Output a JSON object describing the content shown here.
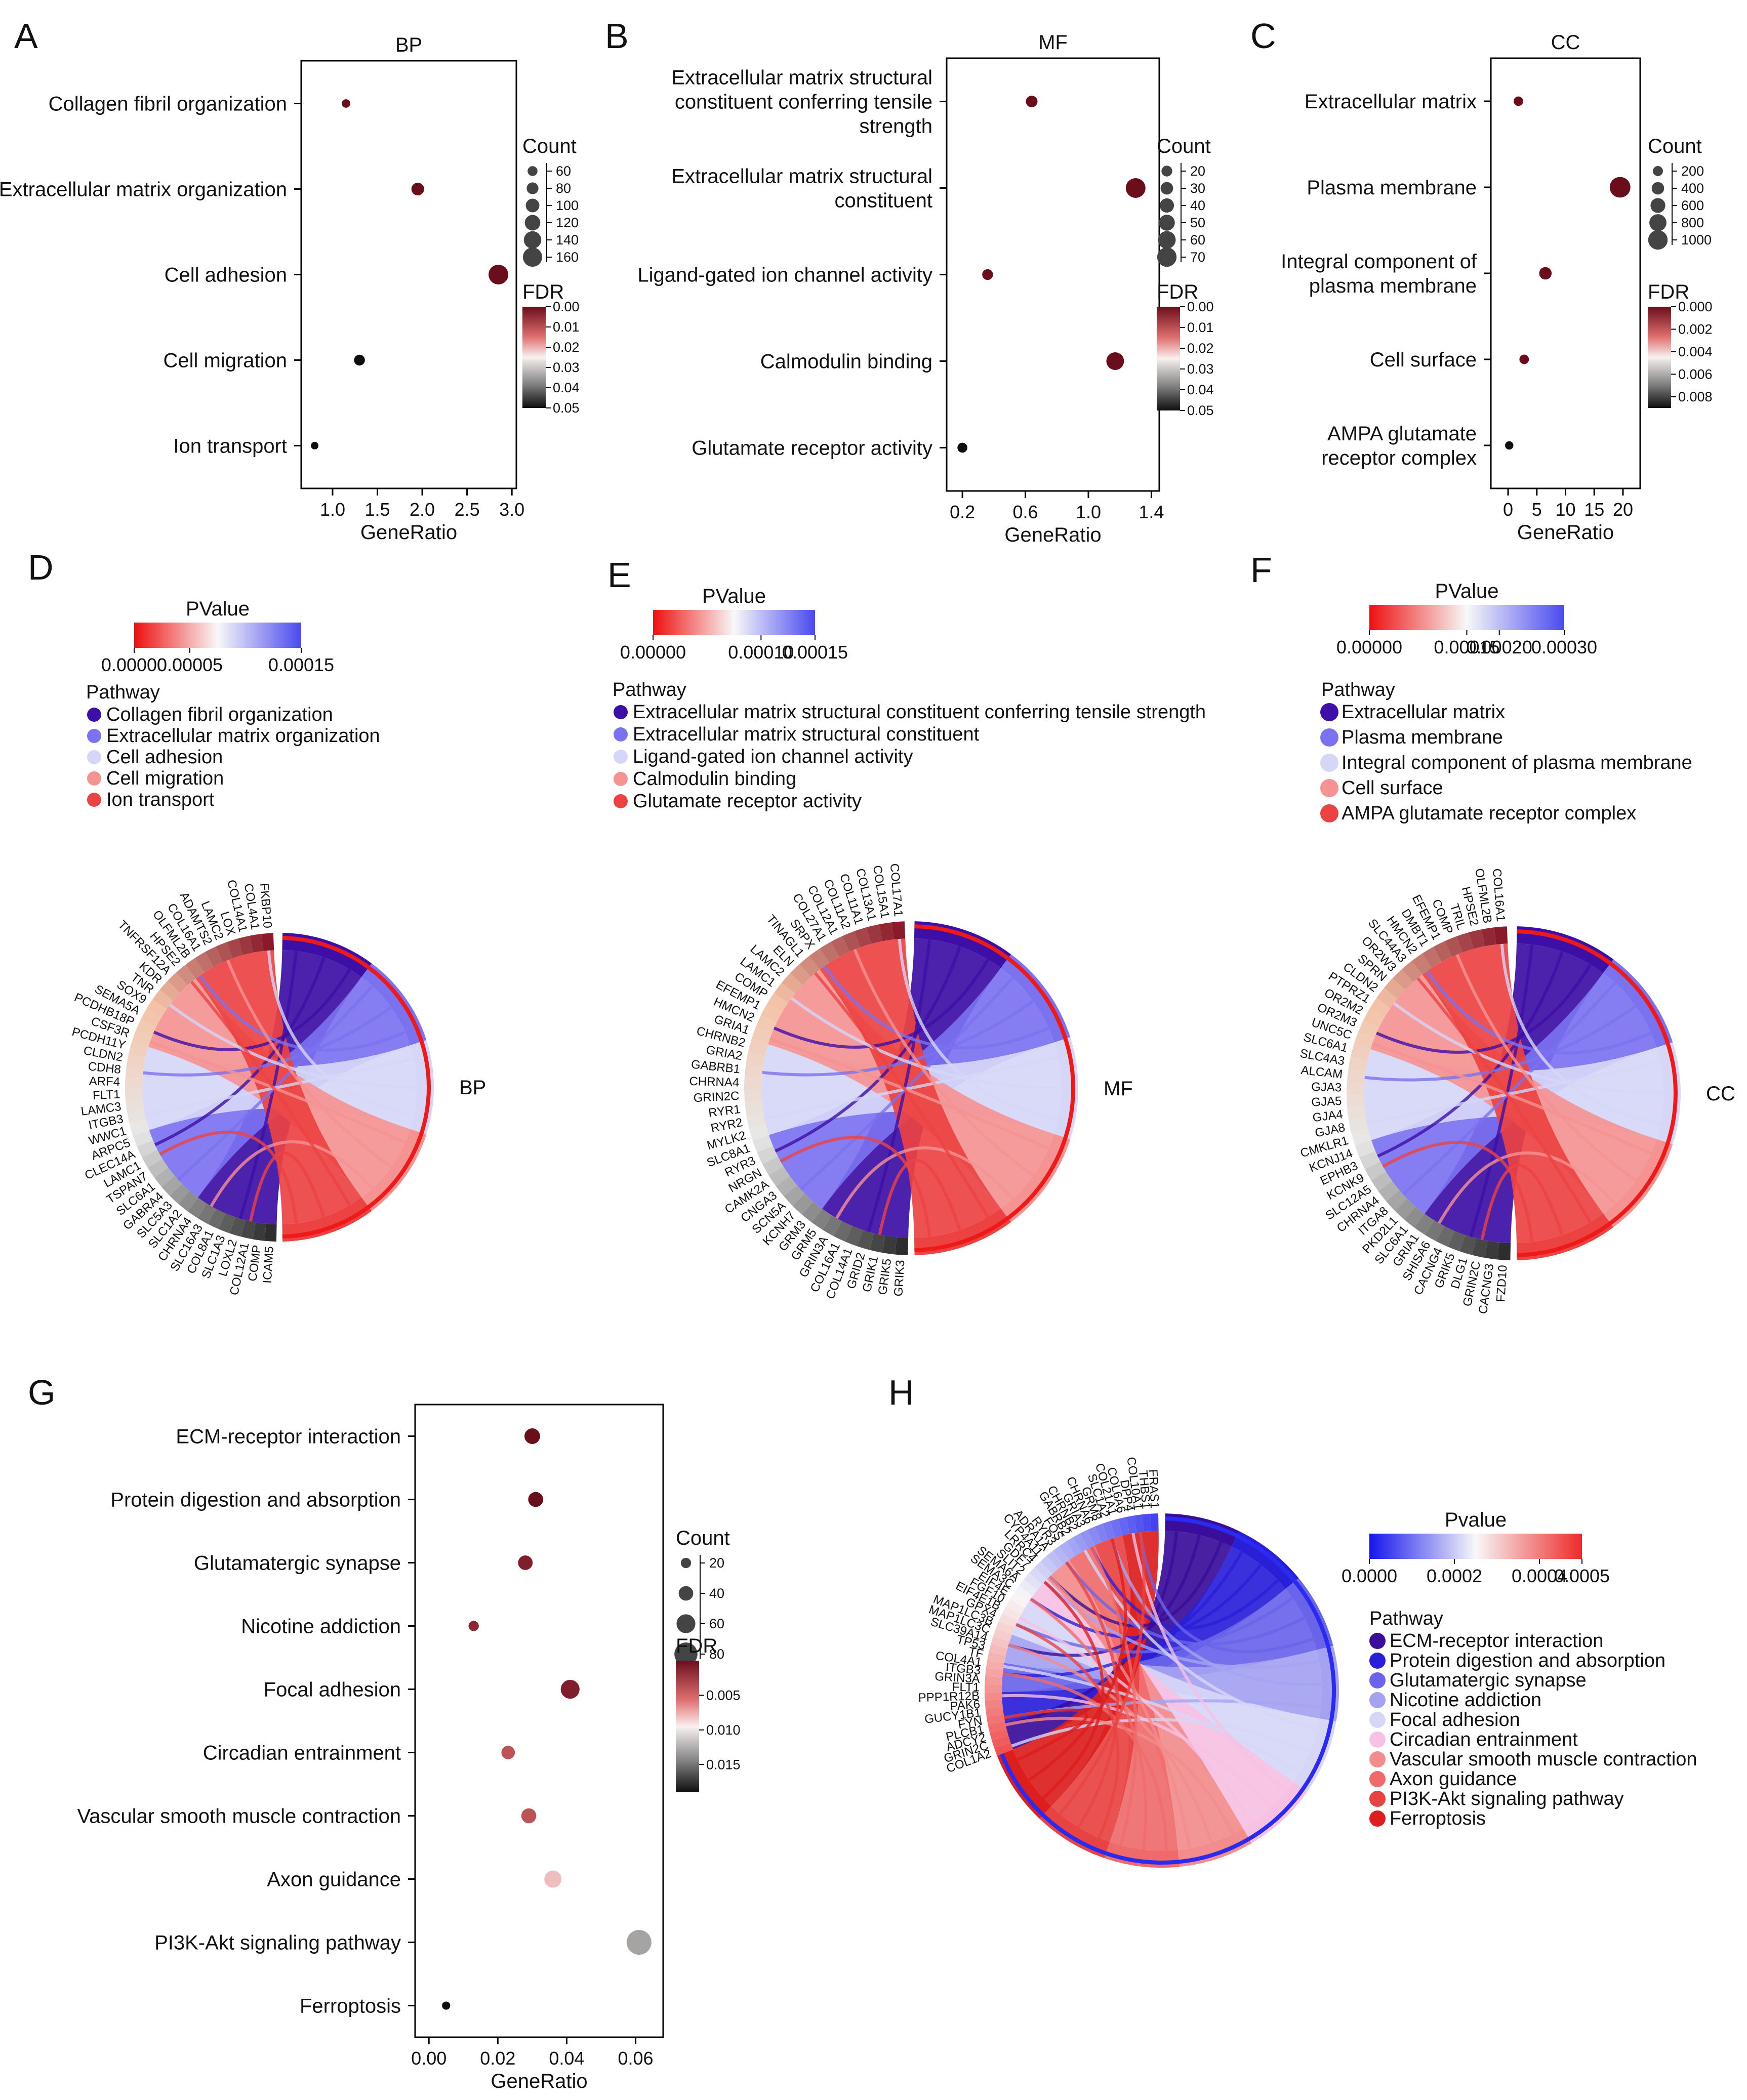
{
  "chart_data": [
    {
      "panel": "A",
      "type": "scatter",
      "title": "BP",
      "xlabel": "GeneRatio",
      "xticks": [
        "1.0",
        "1.5",
        "2.0",
        "2.5",
        "3.0"
      ],
      "xlim": [
        0.65,
        3.05
      ],
      "categories": [
        "Collagen fibril organization",
        "Extracellular matrix organization",
        "Cell adhesion",
        "Cell migration",
        "Ion transport"
      ],
      "points": [
        {
          "term": "Collagen fibril organization",
          "x": 1.15,
          "count": 45,
          "fdr": 0.0
        },
        {
          "term": "Extracellular matrix organization",
          "x": 1.95,
          "count": 90,
          "fdr": 0.0
        },
        {
          "term": "Cell adhesion",
          "x": 2.85,
          "count": 165,
          "fdr": 0.0
        },
        {
          "term": "Cell migration",
          "x": 1.3,
          "count": 70,
          "fdr": 0.05
        },
        {
          "term": "Ion transport",
          "x": 0.8,
          "count": 35,
          "fdr": 0.05
        }
      ],
      "size_legend": {
        "title": "Count",
        "values": [
          60,
          80,
          100,
          120,
          140,
          160
        ],
        "range": [
          30,
          170
        ]
      },
      "color_legend": {
        "title": "FDR",
        "ticks": [
          "0.00",
          "0.01",
          "0.02",
          "0.03",
          "0.04",
          "0.05"
        ],
        "max": 0.05
      }
    },
    {
      "panel": "B",
      "type": "scatter",
      "title": "MF",
      "xlabel": "GeneRatio",
      "xticks": [
        "0.2",
        "0.6",
        "1.0",
        "1.4"
      ],
      "xlim": [
        0.1,
        1.45
      ],
      "categories": [
        "Extracellular matrix structural constituent conferring tensile strength",
        "Extracellular matrix structural constituent",
        "Ligand-gated ion channel activity",
        "Calmodulin binding",
        "Glutamate receptor activity"
      ],
      "category_lines": [
        [
          "Extracellular matrix structural",
          "constituent conferring tensile",
          "strength"
        ],
        [
          "Extracellular matrix structural",
          "constituent"
        ],
        [
          "Ligand-gated ion channel activity"
        ],
        [
          "Calmodulin binding"
        ],
        [
          "Glutamate receptor activity"
        ]
      ],
      "points": [
        {
          "term": "ECM structural constituent conferring tensile strength",
          "x": 0.64,
          "count": 25,
          "fdr": 0.0
        },
        {
          "term": "ECM structural constituent",
          "x": 1.3,
          "count": 72,
          "fdr": 0.0
        },
        {
          "term": "Ligand-gated ion channel activity",
          "x": 0.36,
          "count": 20,
          "fdr": 0.0
        },
        {
          "term": "Calmodulin binding",
          "x": 1.17,
          "count": 60,
          "fdr": 0.0
        },
        {
          "term": "Glutamate receptor activity",
          "x": 0.2,
          "count": 15,
          "fdr": 0.05
        }
      ],
      "size_legend": {
        "title": "Count",
        "values": [
          20,
          30,
          40,
          50,
          60,
          70
        ],
        "range": [
          10,
          75
        ]
      },
      "color_legend": {
        "title": "FDR",
        "ticks": [
          "0.00",
          "0.01",
          "0.02",
          "0.03",
          "0.04",
          "0.05"
        ],
        "max": 0.05
      }
    },
    {
      "panel": "C",
      "type": "scatter",
      "title": "CC",
      "xlabel": "GeneRatio",
      "xticks": [
        "0",
        "5",
        "10",
        "15",
        "20"
      ],
      "xlim": [
        -3,
        23
      ],
      "categories": [
        "Extracellular matrix",
        "Plasma membrane",
        "Integral component of plasma membrane",
        "Cell surface",
        "AMPA glutamate receptor complex"
      ],
      "category_lines": [
        [
          "Extracellular matrix"
        ],
        [
          "Plasma membrane"
        ],
        [
          "Integral component of",
          "plasma membrane"
        ],
        [
          "Cell surface"
        ],
        [
          "AMPA glutamate",
          "receptor complex"
        ]
      ],
      "points": [
        {
          "term": "Extracellular matrix",
          "x": 1.8,
          "count": 150,
          "fdr": 0.0
        },
        {
          "term": "Plasma membrane",
          "x": 19.5,
          "count": 1100,
          "fdr": 0.0
        },
        {
          "term": "Integral component of plasma membrane",
          "x": 6.5,
          "count": 400,
          "fdr": 0.0
        },
        {
          "term": "Cell surface",
          "x": 2.8,
          "count": 150,
          "fdr": 0.0
        },
        {
          "term": "AMPA glutamate receptor complex",
          "x": 0.2,
          "count": 50,
          "fdr": 0.009
        }
      ],
      "size_legend": {
        "title": "Count",
        "values": [
          200,
          400,
          600,
          800,
          1000
        ],
        "range": [
          30,
          1150
        ]
      },
      "color_legend": {
        "title": "FDR",
        "ticks": [
          "0.000",
          "0.002",
          "0.004",
          "0.006",
          "0.008"
        ],
        "max": 0.009
      }
    },
    {
      "panel": "D",
      "type": "chord",
      "label": "BP",
      "scale": {
        "title": "PValue",
        "ticks": [
          "0.00000",
          "0.00005",
          "0.00015"
        ],
        "max": 0.00015
      },
      "pathways": [
        "Collagen fibril organization",
        "Extracellular matrix organization",
        "Cell adhesion",
        "Cell migration",
        "Ion transport"
      ],
      "genes": [
        "ICAM5",
        "COMP",
        "COL12A1",
        "LOXL2",
        "SLC1A3",
        "COL8A1",
        "SLC16A3",
        "CHRNA4",
        "SLC1A2",
        "SLC5A3",
        "GABRA4",
        "SLC6A1",
        "TSPAN7",
        "LAMC1",
        "CLEC14A",
        "ARPC5",
        "WWC1",
        "ITGB3",
        "LAMC3",
        "FLT1",
        "ARF4",
        "CDH8",
        "CLDN2",
        "PCDH11Y",
        "CSF3R",
        "PCDHB18P",
        "SEMA5A",
        "SOX9",
        "TNR",
        "KDR",
        "TNFRSF12A",
        "HPSE2",
        "OLFML2B",
        "COL16A1",
        "ADAMTS2",
        "LAMC2",
        "LOX",
        "COL14A1",
        "COL4A1",
        "FKBP10"
      ]
    },
    {
      "panel": "E",
      "type": "chord",
      "label": "MF",
      "scale": {
        "title": "PValue",
        "ticks": [
          "0.00000",
          "0.00010",
          "0.00015"
        ],
        "max": 0.00015
      },
      "pathways": [
        "Extracellular matrix structural constituent conferring tensile strength",
        "Extracellular matrix structural constituent",
        "Ligand-gated ion channel activity",
        "Calmodulin binding",
        "Glutamate receptor activity"
      ],
      "genes": [
        "GRIK3",
        "GRIK5",
        "GRIK1",
        "GRID2",
        "COL14A1",
        "COL16A1",
        "GRIN3A",
        "GRM5",
        "GRM3",
        "KCNH7",
        "SCN5A",
        "CNGA3",
        "CAMK2A",
        "NRGN",
        "RYR3",
        "SLC8A1",
        "MYLK2",
        "RYR2",
        "RYR1",
        "GRIN2C",
        "CHRNA4",
        "GABRB1",
        "GRIA2",
        "CHRNB2",
        "GRIA1",
        "HMCN2",
        "EFEMP1",
        "COMP",
        "LAMC1",
        "LAMC2",
        "ELN",
        "TINAGL1",
        "SRPX",
        "COL27A1",
        "COL12A1",
        "COL11A2",
        "COL11A1",
        "COL13A1",
        "COL15A1",
        "COL17A1"
      ]
    },
    {
      "panel": "F",
      "type": "chord",
      "label": "CC",
      "scale": {
        "title": "PValue",
        "ticks": [
          "0.00000",
          "0.00015",
          "0.00020",
          "0.00030"
        ],
        "max": 0.0003
      },
      "pathways": [
        "Extracellular matrix",
        "Plasma membrane",
        "Integral component of plasma membrane",
        "Cell surface",
        "AMPA glutamate receptor complex"
      ],
      "genes": [
        "FZD10",
        "CACNG3",
        "GRIN2C",
        "DLG1",
        "GRIK5",
        "CACNG4",
        "SHISA6",
        "GRIA1",
        "SLC6A1",
        "PKD2L1",
        "ITGA8",
        "CHRNA4",
        "SLC12A5",
        "KCNK9",
        "EPHB3",
        "KCNJ14",
        "CMKLR1",
        "GJA8",
        "GJA4",
        "GJA5",
        "GJA3",
        "ALCAM",
        "SLC4A3",
        "SLC6A1",
        "UNC5C",
        "OR2M3",
        "OR2M2",
        "PTPRZ1",
        "CLDN2",
        "SPRN",
        "OR2W3",
        "SLC44A3",
        "HMCN2",
        "DMBT1",
        "EFEMP1",
        "COMP",
        "TRIL",
        "HPSE2",
        "OLFML2B",
        "COL16A1"
      ]
    },
    {
      "panel": "G",
      "type": "scatter",
      "xlabel": "GeneRatio",
      "xticks": [
        "0.00",
        "0.02",
        "0.04",
        "0.06"
      ],
      "xlim": [
        -0.004,
        0.068
      ],
      "categories": [
        "ECM-receptor interaction",
        "Protein digestion and absorption",
        "Glutamatergic synapse",
        "Nicotine addiction",
        "Focal adhesion",
        "Circadian entrainment",
        "Vascular smooth muscle contraction",
        "Axon guidance",
        "PI3K-Akt signaling pathway",
        "Ferroptosis"
      ],
      "points": [
        {
          "term": "ECM-receptor interaction",
          "x": 0.03,
          "count": 45,
          "fdr": 0.0
        },
        {
          "term": "Protein digestion and absorption",
          "x": 0.031,
          "count": 42,
          "fdr": 0.0
        },
        {
          "term": "Glutamatergic synapse",
          "x": 0.028,
          "count": 40,
          "fdr": 0.001
        },
        {
          "term": "Nicotine addiction",
          "x": 0.013,
          "count": 20,
          "fdr": 0.0015
        },
        {
          "term": "Focal adhesion",
          "x": 0.041,
          "count": 60,
          "fdr": 0.001
        },
        {
          "term": "Circadian entrainment",
          "x": 0.023,
          "count": 35,
          "fdr": 0.004
        },
        {
          "term": "Vascular smooth muscle contraction",
          "x": 0.029,
          "count": 42,
          "fdr": 0.004
        },
        {
          "term": "Axon guidance",
          "x": 0.036,
          "count": 52,
          "fdr": 0.008
        },
        {
          "term": "PI3K-Akt signaling pathway",
          "x": 0.061,
          "count": 88,
          "fdr": 0.013
        },
        {
          "term": "Ferroptosis",
          "x": 0.005,
          "count": 10,
          "fdr": 0.019
        }
      ],
      "size_legend": {
        "title": "Count",
        "values": [
          20,
          40,
          60,
          80
        ],
        "range": [
          5,
          95
        ]
      },
      "color_legend": {
        "title": "FDR",
        "ticks": [
          "0.005",
          "0.010",
          "0.015"
        ],
        "max": 0.019
      }
    },
    {
      "panel": "H",
      "type": "chord",
      "scale": {
        "title": "Pvalue",
        "ticks": [
          "0.0000",
          "0.0002",
          "0.0004",
          "0.0005"
        ],
        "max": 0.0005
      },
      "pathways": [
        "ECM-receptor interaction",
        "Protein digestion and absorption",
        "Glutamatergic synapse",
        "Nicotine addiction",
        "Focal adhesion",
        "Circadian entrainment",
        "Vascular smooth muscle contraction",
        "Axon guidance",
        "PI3K-Akt signaling pathway",
        "Ferroptosis"
      ],
      "genes": [
        "COL1A2",
        "GRIN2C",
        "ADCY2",
        "PLCB1",
        "FYN",
        "GUCY1B1",
        "PAK6",
        "PPP1R12B",
        "FLT1",
        "GRIN3A",
        "ITGB3",
        "COL4A1",
        "TF",
        "TP53",
        "SLC39A14",
        "MAP1LC3C",
        "MAP1LC3B",
        "GPX4",
        "EIF4E1B",
        "FGF10",
        "EIF4E",
        "SEMA3C",
        "SEMA6A",
        "SLIT2",
        "GDF7",
        "LRRC4",
        "CYP4A11",
        "ADRA1A",
        "RYR3",
        "FOS",
        "GABRB2",
        "CHRNB2",
        "GRIA3",
        "CHRNA6",
        "GRM8",
        "SLC1A2",
        "COL21A1",
        "COL6A6",
        "DPP4",
        "COL10A1",
        "THBS1",
        "FRAS1"
      ]
    }
  ],
  "panel_labels": [
    "A",
    "B",
    "C",
    "D",
    "E",
    "F",
    "G",
    "H"
  ],
  "legend_titles": {
    "pathway": "Pathway"
  },
  "colors": {
    "dark": "#6b0e1c",
    "pathway5": [
      "#3d0fa6",
      "#7b72f0",
      "#d6d6f7",
      "#f59292",
      "#ec4242"
    ],
    "pathway10": [
      "#3a0d9a",
      "#2a1fd9",
      "#6a64ea",
      "#a5a2f2",
      "#d6d6f7",
      "#f6c1e3",
      "#f38c8c",
      "#ef6b6b",
      "#e84343",
      "#dc1e1e"
    ]
  }
}
